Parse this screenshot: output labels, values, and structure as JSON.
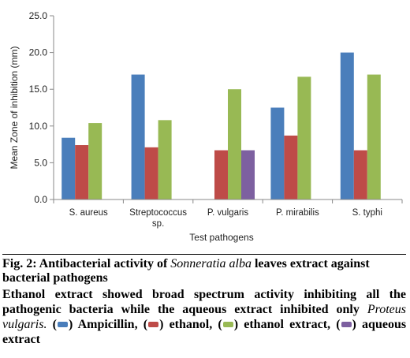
{
  "chart_data": {
    "type": "bar",
    "categories": [
      "S. aureus",
      "Streptococcus sp.",
      "P. vulgaris",
      "P. mirabilis",
      "S. typhi"
    ],
    "category_lines": [
      [
        "S. aureus"
      ],
      [
        "Streptococcus",
        "sp."
      ],
      [
        "P. vulgaris"
      ],
      [
        "P. mirabilis"
      ],
      [
        "S. typhi"
      ]
    ],
    "series": [
      {
        "name": "Ampicillin",
        "color": "#4a7ebb",
        "values": [
          8.4,
          17.0,
          null,
          12.5,
          20.0
        ]
      },
      {
        "name": "ethanol",
        "color": "#be4b48",
        "values": [
          7.4,
          7.1,
          6.7,
          8.7,
          6.7
        ]
      },
      {
        "name": "ethanol extract",
        "color": "#98b954",
        "values": [
          10.4,
          10.8,
          15.0,
          16.7,
          17.0
        ]
      },
      {
        "name": "aqueous extract",
        "color": "#7d60a0",
        "values": [
          null,
          null,
          6.7,
          null,
          null
        ]
      }
    ],
    "xlabel": "Test pathogens",
    "ylabel": "Mean Zone of inhibition (mm)",
    "ylim": [
      0,
      25
    ],
    "yticks": [
      "0.0",
      "5.0",
      "10.0",
      "15.0",
      "20.0",
      "25.0"
    ],
    "grid": false,
    "legend": "none"
  },
  "caption": {
    "fig_label": "Fig. 2:",
    "title_before": "Antibacterial activity of",
    "title_species": "Sonneratia alba",
    "title_after": "leaves extract against",
    "title_line2": "bacterial pathogens",
    "body_text": "Ethanol extract showed broad spectrum activity inhibiting all the pathogenic bacteria while the aqueous extract inhibited only",
    "body_species": "Proteus vulgaris.",
    "legend_items": [
      {
        "label": "Ampicillin,",
        "color": "#4a7ebb"
      },
      {
        "label": "ethanol,",
        "color": "#be4b48"
      },
      {
        "label": "ethanol extract,",
        "color": "#98b954"
      },
      {
        "label": "aqueous extract",
        "color": "#7d60a0"
      }
    ]
  }
}
